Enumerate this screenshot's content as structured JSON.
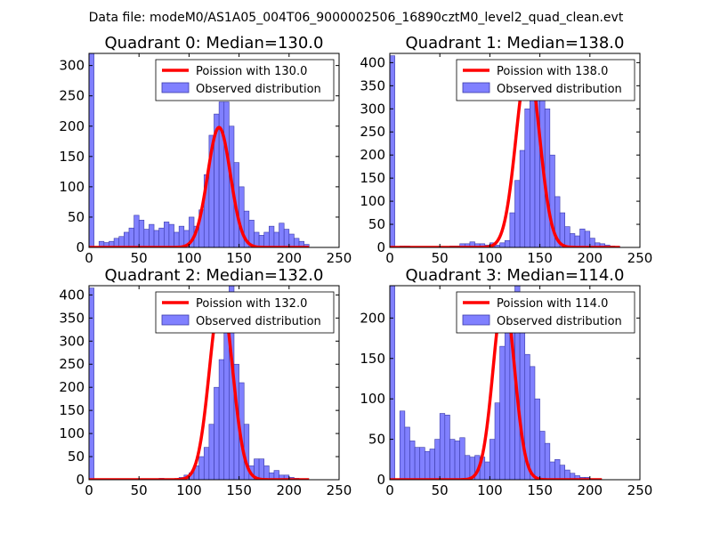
{
  "figure": {
    "suptitle": "Data file: modeM0/AS1A05_004T06_9000002506_16890cztM0_level2_quad_clean.evt"
  },
  "colors": {
    "hist_fill": "#8080ff",
    "hist_edge": "#3a3aa8",
    "poisson_line": "#ff0000",
    "axes": "#000000"
  },
  "chart_data": [
    {
      "type": "bar",
      "title": "Quadrant 0: Median=130.0",
      "xlim": [
        0,
        250
      ],
      "ylim": [
        0,
        320
      ],
      "xticks": [
        0,
        50,
        100,
        150,
        200,
        250
      ],
      "yticks": [
        0,
        50,
        100,
        150,
        200,
        250,
        300
      ],
      "bin_width": 5,
      "bin_starts": [
        0,
        5,
        10,
        15,
        20,
        25,
        30,
        35,
        40,
        45,
        50,
        55,
        60,
        65,
        70,
        75,
        80,
        85,
        90,
        95,
        100,
        105,
        110,
        115,
        120,
        125,
        130,
        135,
        140,
        145,
        150,
        155,
        160,
        165,
        170,
        175,
        180,
        185,
        190,
        195,
        200,
        205,
        210,
        215
      ],
      "counts": [
        320,
        0,
        10,
        8,
        10,
        15,
        18,
        25,
        32,
        53,
        45,
        30,
        38,
        28,
        32,
        42,
        38,
        25,
        35,
        28,
        50,
        35,
        62,
        120,
        185,
        220,
        240,
        240,
        200,
        140,
        100,
        60,
        45,
        25,
        20,
        25,
        35,
        25,
        40,
        30,
        22,
        15,
        10,
        5
      ],
      "poisson_mu": 130.0,
      "poisson_peak": 198,
      "poisson_range": [
        0,
        220
      ],
      "legend": [
        "Poission with 130.0",
        "Observed distribution"
      ]
    },
    {
      "type": "bar",
      "title": "Quadrant 1: Median=138.0",
      "xlim": [
        0,
        250
      ],
      "ylim": [
        0,
        420
      ],
      "xticks": [
        0,
        50,
        100,
        150,
        200,
        250
      ],
      "yticks": [
        0,
        50,
        100,
        150,
        200,
        250,
        300,
        350,
        400
      ],
      "bin_width": 5,
      "bin_starts": [
        0,
        5,
        10,
        15,
        20,
        25,
        30,
        35,
        40,
        45,
        50,
        55,
        60,
        65,
        70,
        75,
        80,
        85,
        90,
        95,
        100,
        105,
        110,
        115,
        120,
        125,
        130,
        135,
        140,
        145,
        150,
        155,
        160,
        165,
        170,
        175,
        180,
        185,
        190,
        195,
        200,
        205,
        210,
        215,
        220,
        225
      ],
      "counts": [
        415,
        0,
        3,
        3,
        2,
        2,
        2,
        2,
        2,
        2,
        2,
        2,
        3,
        3,
        8,
        8,
        12,
        8,
        8,
        5,
        10,
        5,
        10,
        15,
        75,
        145,
        210,
        300,
        375,
        400,
        400,
        300,
        200,
        110,
        75,
        45,
        30,
        25,
        40,
        35,
        20,
        10,
        8,
        5,
        3,
        2
      ],
      "poisson_mu": 138.0,
      "poisson_peak": 398,
      "poisson_range": [
        0,
        230
      ],
      "legend": [
        "Poission with 138.0",
        "Observed distribution"
      ]
    },
    {
      "type": "bar",
      "title": "Quadrant 2: Median=132.0",
      "xlim": [
        0,
        250
      ],
      "ylim": [
        0,
        420
      ],
      "xticks": [
        0,
        50,
        100,
        150,
        200,
        250
      ],
      "yticks": [
        0,
        50,
        100,
        150,
        200,
        250,
        300,
        350,
        400
      ],
      "bin_width": 5,
      "bin_starts": [
        0,
        5,
        10,
        15,
        20,
        25,
        30,
        35,
        40,
        45,
        50,
        55,
        60,
        65,
        70,
        75,
        80,
        85,
        90,
        95,
        100,
        105,
        110,
        115,
        120,
        125,
        130,
        135,
        140,
        145,
        150,
        155,
        160,
        165,
        170,
        175,
        180,
        185,
        190,
        195,
        200,
        205,
        210,
        215
      ],
      "counts": [
        415,
        0,
        0,
        0,
        0,
        0,
        0,
        0,
        0,
        0,
        0,
        0,
        0,
        0,
        3,
        0,
        0,
        0,
        5,
        10,
        15,
        30,
        50,
        70,
        120,
        200,
        260,
        390,
        420,
        250,
        210,
        120,
        30,
        45,
        45,
        30,
        15,
        20,
        10,
        10,
        5,
        3,
        0,
        0
      ],
      "poisson_mu": 132.0,
      "poisson_peak": 398,
      "poisson_range": [
        0,
        220
      ],
      "legend": [
        "Poission with 132.0",
        "Observed distribution"
      ]
    },
    {
      "type": "bar",
      "title": "Quadrant 3: Median=114.0",
      "xlim": [
        0,
        250
      ],
      "ylim": [
        0,
        240
      ],
      "xticks": [
        0,
        50,
        100,
        150,
        200,
        250
      ],
      "yticks": [
        0,
        50,
        100,
        150,
        200
      ],
      "bin_width": 5,
      "bin_starts": [
        0,
        5,
        10,
        15,
        20,
        25,
        30,
        35,
        40,
        45,
        50,
        55,
        60,
        65,
        70,
        75,
        80,
        85,
        90,
        95,
        100,
        105,
        110,
        115,
        120,
        125,
        130,
        135,
        140,
        145,
        150,
        155,
        160,
        165,
        170,
        175,
        180,
        185,
        190,
        195,
        200,
        205
      ],
      "counts": [
        240,
        0,
        85,
        65,
        48,
        40,
        40,
        35,
        38,
        50,
        82,
        80,
        50,
        48,
        52,
        30,
        28,
        30,
        28,
        22,
        50,
        95,
        165,
        200,
        210,
        240,
        220,
        155,
        140,
        100,
        60,
        45,
        22,
        25,
        18,
        12,
        8,
        5,
        3,
        3,
        0,
        0
      ],
      "poisson_mu": 114.0,
      "poisson_peak": 228,
      "poisson_range": [
        0,
        212
      ],
      "legend": [
        "Poission with 114.0",
        "Observed distribution"
      ]
    }
  ]
}
